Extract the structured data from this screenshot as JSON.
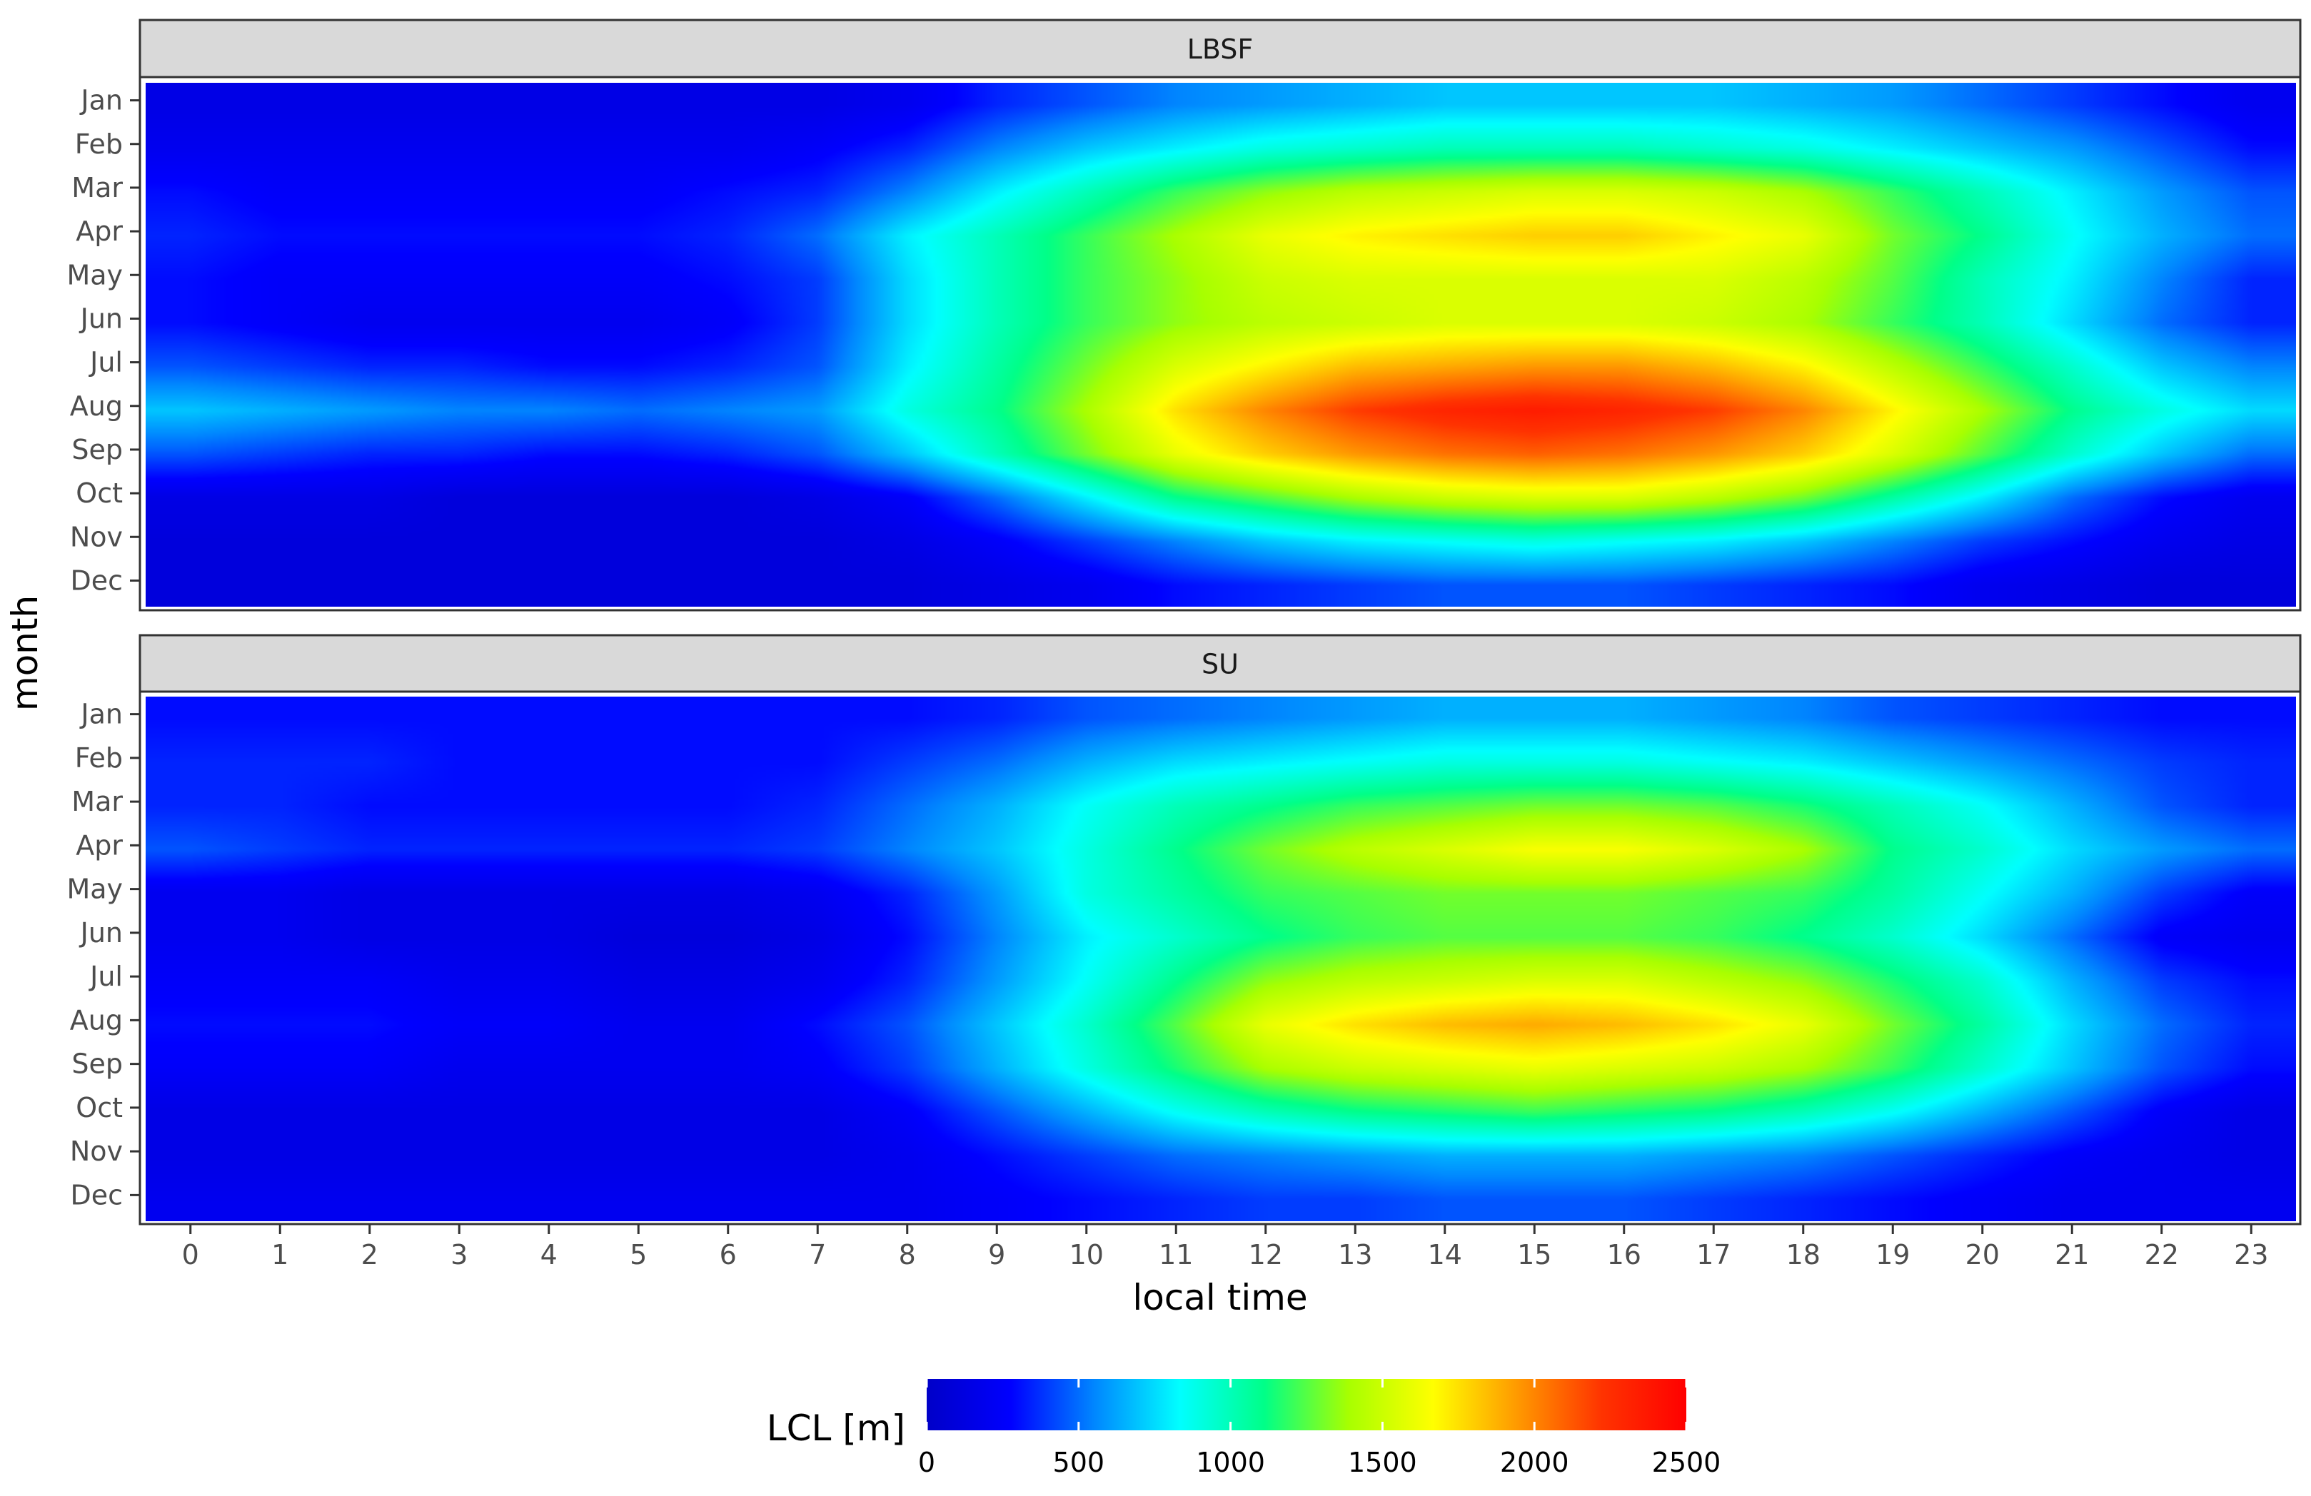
{
  "chart_data": {
    "type": "heatmap",
    "facets": [
      {
        "name": "LBSF",
        "z": [
          [
            150,
            150,
            150,
            150,
            150,
            150,
            150,
            150,
            200,
            350,
            450,
            550,
            600,
            650,
            700,
            700,
            700,
            700,
            650,
            600,
            500,
            400,
            300,
            200
          ],
          [
            200,
            200,
            200,
            200,
            200,
            200,
            200,
            250,
            350,
            550,
            700,
            800,
            900,
            950,
            1000,
            1000,
            1000,
            950,
            900,
            800,
            700,
            600,
            450,
            300
          ],
          [
            300,
            250,
            250,
            250,
            250,
            250,
            300,
            350,
            550,
            800,
            1000,
            1200,
            1350,
            1450,
            1500,
            1550,
            1550,
            1500,
            1400,
            1200,
            1000,
            800,
            600,
            450
          ],
          [
            350,
            300,
            300,
            300,
            300,
            300,
            350,
            500,
            800,
            1000,
            1200,
            1400,
            1600,
            1700,
            1750,
            1800,
            1800,
            1700,
            1600,
            1300,
            1100,
            850,
            650,
            500
          ],
          [
            300,
            250,
            250,
            250,
            250,
            250,
            300,
            400,
            750,
            1000,
            1200,
            1350,
            1500,
            1550,
            1550,
            1550,
            1550,
            1550,
            1450,
            1250,
            1000,
            800,
            550,
            350
          ],
          [
            300,
            250,
            200,
            200,
            200,
            200,
            250,
            400,
            750,
            1000,
            1200,
            1350,
            1450,
            1500,
            1550,
            1550,
            1550,
            1500,
            1400,
            1200,
            1000,
            750,
            500,
            350
          ],
          [
            450,
            400,
            350,
            350,
            300,
            300,
            350,
            450,
            800,
            1050,
            1300,
            1550,
            1700,
            1850,
            1900,
            1950,
            1950,
            1850,
            1700,
            1450,
            1200,
            950,
            700,
            550
          ],
          [
            700,
            650,
            600,
            550,
            550,
            500,
            550,
            600,
            900,
            1100,
            1400,
            1750,
            2000,
            2200,
            2300,
            2350,
            2300,
            2200,
            2000,
            1700,
            1400,
            1100,
            900,
            750
          ],
          [
            450,
            400,
            350,
            350,
            300,
            300,
            350,
            450,
            700,
            1000,
            1300,
            1600,
            1800,
            1950,
            2050,
            2100,
            2050,
            1950,
            1800,
            1550,
            1250,
            950,
            700,
            500
          ],
          [
            150,
            150,
            150,
            100,
            100,
            100,
            100,
            150,
            250,
            500,
            800,
            1100,
            1250,
            1400,
            1500,
            1550,
            1550,
            1450,
            1300,
            1050,
            800,
            500,
            300,
            200
          ],
          [
            100,
            100,
            100,
            100,
            100,
            100,
            100,
            100,
            150,
            250,
            400,
            550,
            700,
            800,
            850,
            900,
            850,
            800,
            700,
            550,
            400,
            300,
            200,
            150
          ],
          [
            100,
            100,
            100,
            100,
            100,
            100,
            100,
            100,
            100,
            150,
            200,
            300,
            350,
            400,
            450,
            450,
            450,
            400,
            350,
            300,
            200,
            150,
            100,
            100
          ]
        ]
      },
      {
        "name": "SU",
        "z": [
          [
            300,
            300,
            300,
            300,
            300,
            300,
            300,
            300,
            300,
            350,
            450,
            500,
            550,
            600,
            650,
            650,
            650,
            600,
            550,
            450,
            400,
            350,
            300,
            300
          ],
          [
            350,
            350,
            350,
            300,
            300,
            300,
            300,
            300,
            400,
            500,
            650,
            750,
            800,
            850,
            900,
            900,
            900,
            850,
            800,
            700,
            600,
            500,
            400,
            350
          ],
          [
            350,
            350,
            300,
            300,
            300,
            300,
            300,
            350,
            500,
            650,
            850,
            1000,
            1100,
            1200,
            1250,
            1300,
            1300,
            1250,
            1150,
            1000,
            850,
            650,
            450,
            350
          ],
          [
            450,
            400,
            350,
            350,
            350,
            350,
            350,
            400,
            550,
            700,
            900,
            1100,
            1300,
            1450,
            1550,
            1650,
            1650,
            1550,
            1400,
            1100,
            950,
            750,
            600,
            500
          ],
          [
            200,
            200,
            150,
            150,
            150,
            150,
            150,
            200,
            350,
            600,
            900,
            1050,
            1200,
            1250,
            1300,
            1300,
            1300,
            1250,
            1200,
            1050,
            850,
            650,
            400,
            250
          ],
          [
            200,
            200,
            150,
            150,
            150,
            100,
            100,
            150,
            300,
            550,
            800,
            950,
            1100,
            1200,
            1250,
            1250,
            1250,
            1200,
            1100,
            950,
            750,
            500,
            250,
            200
          ],
          [
            250,
            250,
            250,
            200,
            200,
            150,
            150,
            200,
            350,
            600,
            850,
            1100,
            1350,
            1450,
            1500,
            1550,
            1550,
            1450,
            1350,
            1150,
            950,
            650,
            400,
            300
          ],
          [
            300,
            300,
            300,
            250,
            250,
            200,
            200,
            300,
            450,
            700,
            950,
            1250,
            1600,
            1750,
            1850,
            1900,
            1850,
            1750,
            1600,
            1300,
            1050,
            750,
            500,
            350
          ],
          [
            250,
            250,
            250,
            200,
            200,
            200,
            200,
            250,
            400,
            650,
            900,
            1150,
            1400,
            1500,
            1550,
            1600,
            1550,
            1500,
            1400,
            1200,
            950,
            700,
            450,
            300
          ],
          [
            150,
            150,
            150,
            150,
            150,
            150,
            150,
            150,
            250,
            450,
            650,
            850,
            1000,
            1100,
            1150,
            1200,
            1150,
            1100,
            1000,
            850,
            650,
            450,
            250,
            150
          ],
          [
            150,
            150,
            150,
            150,
            150,
            150,
            150,
            150,
            200,
            300,
            400,
            500,
            550,
            600,
            650,
            650,
            650,
            600,
            550,
            450,
            350,
            250,
            200,
            150
          ],
          [
            200,
            200,
            200,
            200,
            200,
            200,
            200,
            200,
            200,
            250,
            300,
            350,
            400,
            400,
            450,
            450,
            450,
            400,
            350,
            300,
            250,
            200,
            200,
            200
          ]
        ]
      }
    ],
    "x": [
      0,
      1,
      2,
      3,
      4,
      5,
      6,
      7,
      8,
      9,
      10,
      11,
      12,
      13,
      14,
      15,
      16,
      17,
      18,
      19,
      20,
      21,
      22,
      23
    ],
    "x_tick_labels": [
      "0",
      "1",
      "2",
      "3",
      "4",
      "5",
      "6",
      "7",
      "8",
      "9",
      "10",
      "11",
      "12",
      "13",
      "14",
      "15",
      "16",
      "17",
      "18",
      "19",
      "20",
      "21",
      "22",
      "23"
    ],
    "y": [
      "Jan",
      "Feb",
      "Mar",
      "Apr",
      "May",
      "Jun",
      "Jul",
      "Aug",
      "Sep",
      "Oct",
      "Nov",
      "Dec"
    ],
    "xlabel": "local time",
    "ylabel": "month",
    "colorbar": {
      "title": "LCL [m]",
      "range": [
        0,
        2500
      ],
      "tick_labels": [
        "0",
        "500",
        "1000",
        "1500",
        "2000",
        "2500"
      ],
      "ticks": [
        0,
        500,
        1000,
        1500,
        2000,
        2500
      ],
      "colors": [
        "#0000c8",
        "#0000ff",
        "#0088ff",
        "#00ffff",
        "#00ff88",
        "#a8ff00",
        "#ffff00",
        "#ff9900",
        "#ff3300",
        "#ff0000"
      ]
    },
    "legend_position": "bottom"
  }
}
